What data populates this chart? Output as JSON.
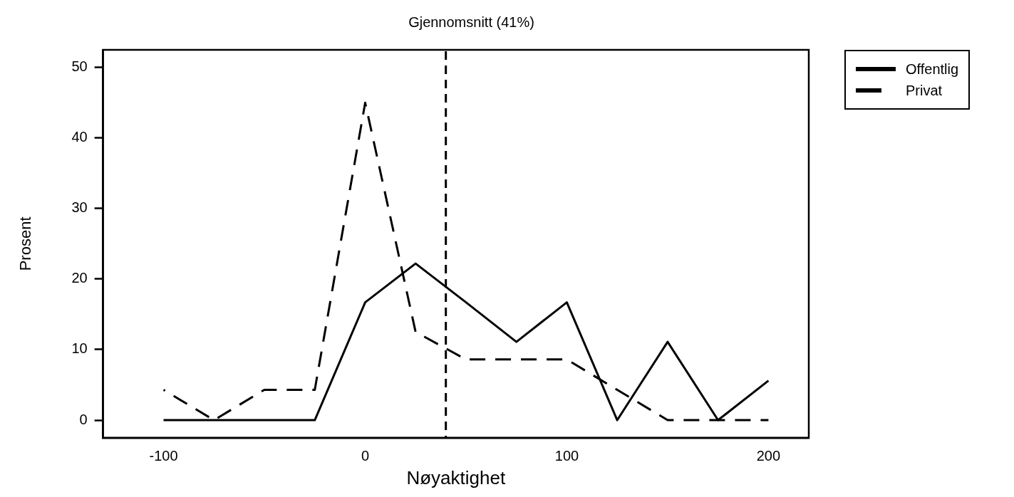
{
  "chart_data": {
    "type": "line",
    "title": "Gjennomsnitt (41%)",
    "xlabel": "Nøyaktighet",
    "ylabel": "Prosent",
    "x": [
      -100,
      -75,
      -50,
      -25,
      0,
      25,
      50,
      75,
      100,
      125,
      150,
      175,
      200
    ],
    "series": [
      {
        "name": "Offentlig",
        "color": "#000000",
        "line_style": "solid",
        "values": [
          0,
          0,
          0,
          0,
          16.7,
          22.2,
          16.7,
          11.1,
          16.7,
          0,
          11.1,
          0,
          5.6
        ]
      },
      {
        "name": "Privat",
        "color": "#000000",
        "line_style": "dashed",
        "values": [
          4.3,
          0,
          4.3,
          4.3,
          45,
          12.5,
          8.6,
          8.6,
          8.6,
          4.3,
          0,
          0,
          0
        ]
      }
    ],
    "xlim": [
      -130,
      220
    ],
    "xticks": [
      -100,
      0,
      100,
      200
    ],
    "ylim": [
      -2.5,
      52.5
    ],
    "yticks": [
      0,
      10,
      20,
      30,
      40,
      50
    ],
    "ref_lines": [
      {
        "axis": "x",
        "value": 40,
        "line_style": "dashed",
        "color": "#000000"
      }
    ],
    "grid": false,
    "legend": "top right",
    "marker": "none"
  }
}
